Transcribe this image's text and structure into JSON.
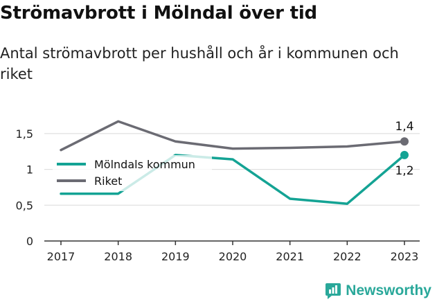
{
  "title": "Strömavbrott i Mölndal över tid",
  "subtitle": "Antal strömavbrott per hushåll och år i kommunen och riket",
  "brand": "Newsworthy",
  "colors": {
    "molndal": "#14a394",
    "riket": "#6b6b73",
    "grid": "#d9d9d9",
    "brand": "#2aa89a"
  },
  "chart_data": {
    "type": "line",
    "x": [
      "2017",
      "2018",
      "2019",
      "2020",
      "2021",
      "2022",
      "2023"
    ],
    "ylim": [
      0,
      1.75
    ],
    "yticks": [
      0,
      0.5,
      1,
      1.5
    ],
    "ytick_labels": [
      "0",
      "0,5",
      "1",
      "1,5"
    ],
    "legend_position": "upper-left",
    "series": [
      {
        "name": "Mölndals kommun",
        "values": [
          0.66,
          0.66,
          1.2,
          1.14,
          0.59,
          0.52,
          1.2
        ],
        "end_label": "1,2"
      },
      {
        "name": "Riket",
        "values": [
          1.27,
          1.67,
          1.39,
          1.29,
          1.3,
          1.32,
          1.39
        ],
        "end_label": "1,4"
      }
    ]
  }
}
